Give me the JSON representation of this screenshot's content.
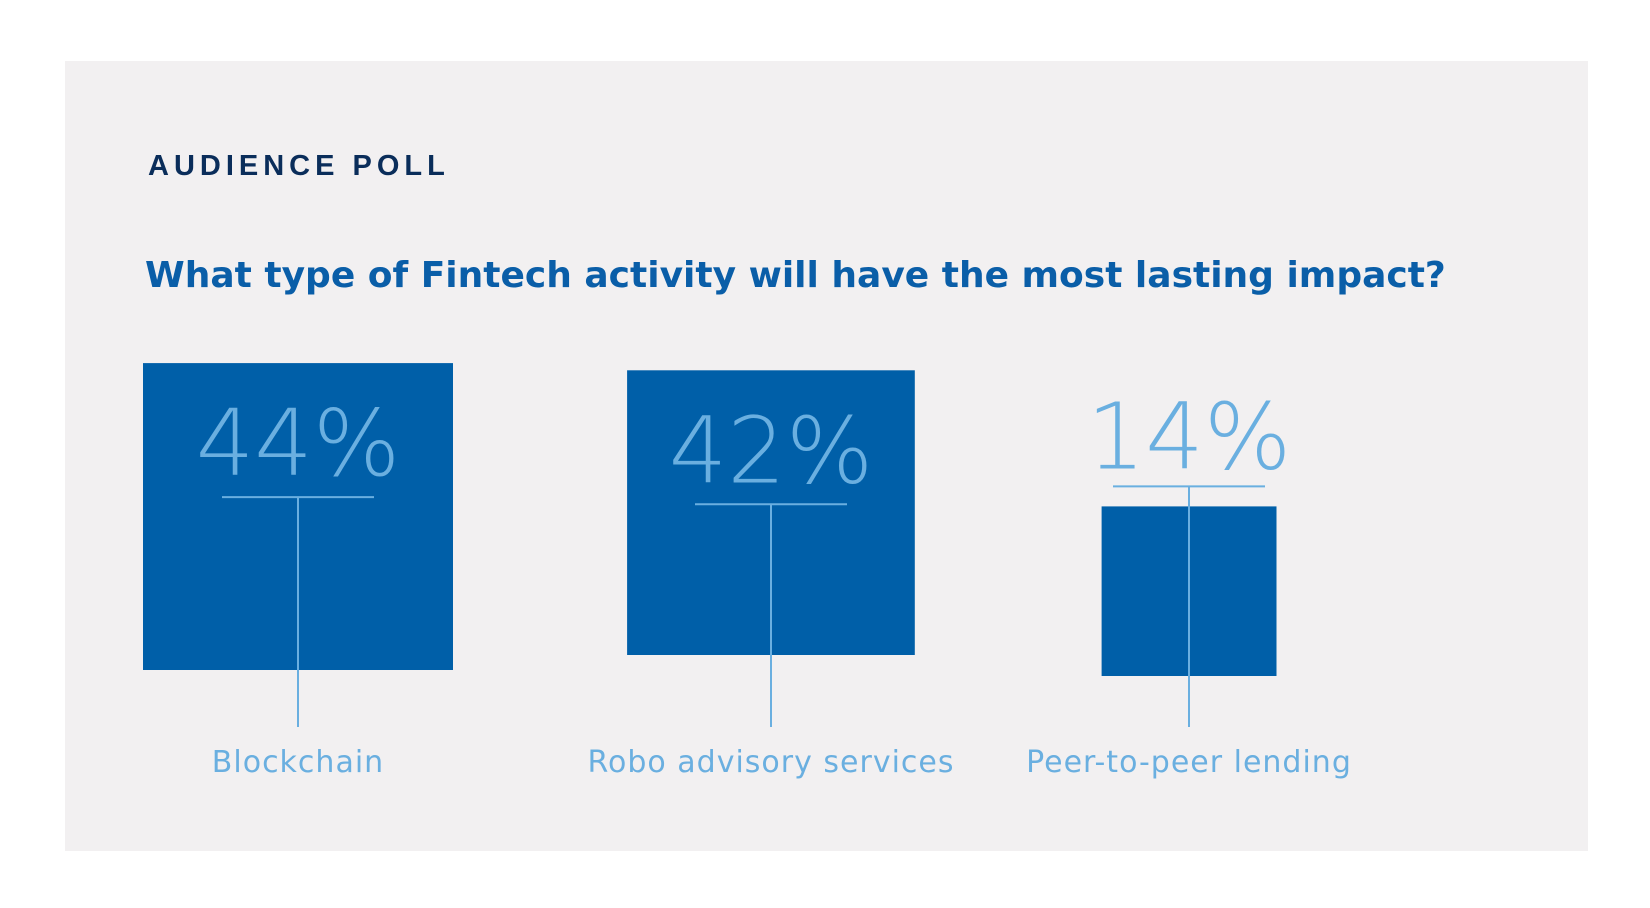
{
  "header": {
    "kicker": "AUDIENCE POLL",
    "question": "What type of Fintech activity will have the most lasting impact?"
  },
  "colors": {
    "panel_bg": "#f2f0f1",
    "bar": "#005fa8",
    "accent_light": "#6aafe0",
    "kicker": "#0a2d5a",
    "question": "#0a5ea8"
  },
  "chart_data": {
    "type": "bar",
    "categories": [
      "Blockchain",
      "Robo advisory services",
      "Peer-to-peer lending"
    ],
    "values": [
      44,
      42,
      14
    ],
    "value_labels": [
      "44%",
      "42%",
      "14%"
    ],
    "unit": "%"
  }
}
